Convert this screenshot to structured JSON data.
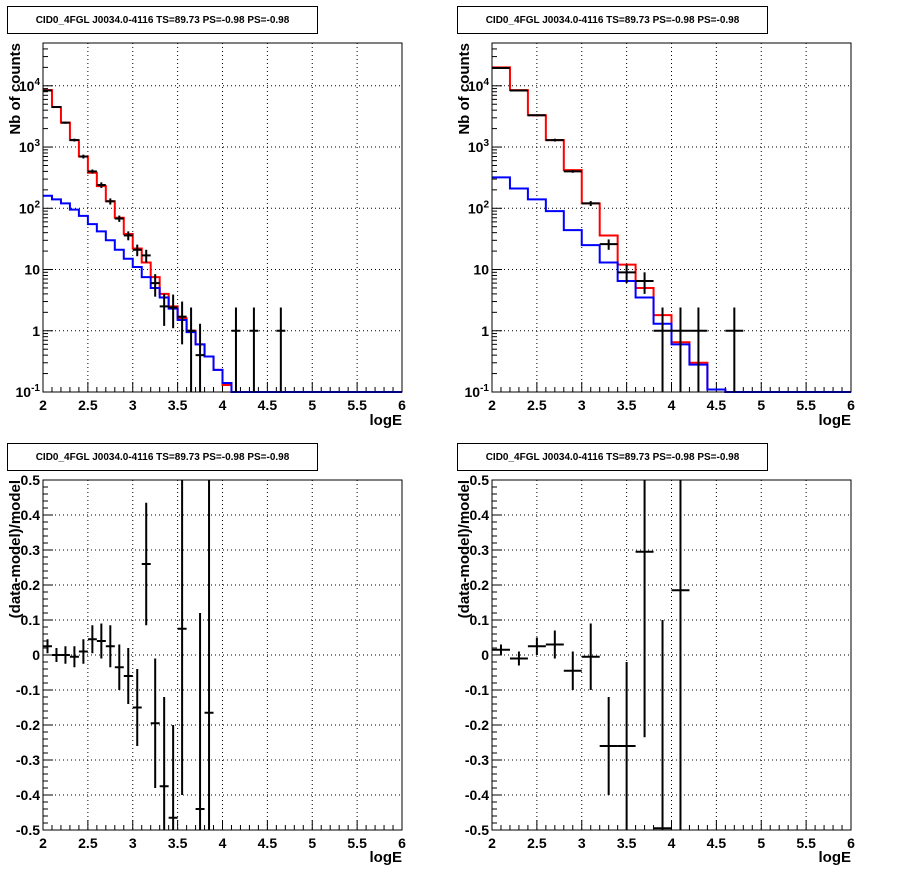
{
  "chart_data": [
    {
      "type": "line",
      "title": "CID0_4FGL J0034.0-4116 TS=89.73 PS=-0.98 PS=-0.98",
      "xlabel": "logE",
      "ylabel": "Nb of counts",
      "xlim": [
        2,
        6
      ],
      "ylim": [
        0.1,
        50000
      ],
      "yscale": "log",
      "grid": true,
      "x_ticks": [
        "2",
        "2.5",
        "3",
        "3.5",
        "4",
        "4.5",
        "5",
        "5.5",
        "6"
      ],
      "y_ticks": [
        "10^-1",
        "1",
        "10",
        "10^2",
        "10^3",
        "10^4"
      ],
      "bin_edges": [
        2.0,
        2.1,
        2.2,
        2.3,
        2.4,
        2.5,
        2.6,
        2.7,
        2.8,
        2.9,
        3.0,
        3.1,
        3.2,
        3.3,
        3.4,
        3.5,
        3.6,
        3.7,
        3.8,
        3.9,
        4.0,
        4.1,
        4.2,
        4.3,
        4.4,
        4.5,
        4.6,
        4.7,
        4.8,
        4.9,
        5.0,
        5.1,
        5.2,
        5.3,
        5.4,
        5.5,
        5.6,
        5.7,
        5.8,
        5.9,
        6.0
      ],
      "series": [
        {
          "color": "#ff0000",
          "values": [
            8500,
            4500,
            2500,
            1300,
            700,
            380,
            230,
            130,
            70,
            38,
            22,
            13,
            7.5,
            4,
            2.5,
            1.6,
            1.0,
            0.6,
            0.38,
            0.23,
            0.13,
            0.1,
            0.1,
            0.1,
            0.1,
            0.1,
            0.1,
            0.1,
            0.1,
            0.1,
            0.1,
            0.1,
            0.1,
            0.1,
            0.1,
            0.1,
            0.1,
            0.1,
            0.1,
            0.1
          ]
        },
        {
          "color": "#0000ff",
          "values": [
            160,
            140,
            120,
            95,
            75,
            55,
            42,
            30,
            21,
            15,
            11,
            7.5,
            5,
            3.5,
            2.3,
            1.5,
            0.95,
            0.6,
            0.38,
            0.23,
            0.14,
            0.1,
            0.1,
            0.1,
            0.1,
            0.1,
            0.1,
            0.1,
            0.1,
            0.1,
            0.1,
            0.1,
            0.1,
            0.1,
            0.1,
            0.1,
            0.1,
            0.1,
            0.1,
            0.1
          ]
        }
      ],
      "points": [
        {
          "x": 2.05,
          "y": 8400,
          "ylo": 8200,
          "yhi": 8600
        },
        {
          "x": 2.15,
          "y": 4500,
          "ylo": 4350,
          "yhi": 4650
        },
        {
          "x": 2.25,
          "y": 2500,
          "ylo": 2400,
          "yhi": 2600
        },
        {
          "x": 2.35,
          "y": 1300,
          "ylo": 1230,
          "yhi": 1370
        },
        {
          "x": 2.45,
          "y": 700,
          "ylo": 650,
          "yhi": 750
        },
        {
          "x": 2.55,
          "y": 400,
          "ylo": 370,
          "yhi": 430
        },
        {
          "x": 2.65,
          "y": 240,
          "ylo": 215,
          "yhi": 265
        },
        {
          "x": 2.75,
          "y": 130,
          "ylo": 115,
          "yhi": 145
        },
        {
          "x": 2.85,
          "y": 68,
          "ylo": 60,
          "yhi": 76
        },
        {
          "x": 2.95,
          "y": 36,
          "ylo": 30,
          "yhi": 42
        },
        {
          "x": 3.05,
          "y": 21,
          "ylo": 16.5,
          "yhi": 25.5
        },
        {
          "x": 3.15,
          "y": 17,
          "ylo": 13,
          "yhi": 21
        },
        {
          "x": 3.25,
          "y": 6,
          "ylo": 3.6,
          "yhi": 8.4
        },
        {
          "x": 3.35,
          "y": 2.5,
          "ylo": 1.2,
          "yhi": 4
        },
        {
          "x": 3.45,
          "y": 2.4,
          "ylo": 1.1,
          "yhi": 3.9
        },
        {
          "x": 3.55,
          "y": 1.7,
          "ylo": 0.6,
          "yhi": 3
        },
        {
          "x": 3.65,
          "y": 1.0,
          "ylo": 0.1,
          "yhi": 2.4
        },
        {
          "x": 3.75,
          "y": 0.4,
          "ylo": 0.1,
          "yhi": 1.3
        },
        {
          "x": 4.15,
          "y": 1.0,
          "ylo": 0.1,
          "yhi": 2.4
        },
        {
          "x": 4.35,
          "y": 1.0,
          "ylo": 0.1,
          "yhi": 2.4
        },
        {
          "x": 4.65,
          "y": 1.0,
          "ylo": 0.1,
          "yhi": 2.4
        }
      ]
    },
    {
      "type": "line",
      "title": "CID0_4FGL J0034.0-4116 TS=89.73 PS=-0.98 PS=-0.98",
      "xlabel": "logE",
      "ylabel": "Nb of counts",
      "xlim": [
        2,
        6
      ],
      "ylim": [
        0.1,
        50000
      ],
      "yscale": "log",
      "grid": true,
      "x_ticks": [
        "2",
        "2.5",
        "3",
        "3.5",
        "4",
        "4.5",
        "5",
        "5.5",
        "6"
      ],
      "y_ticks": [
        "10^-1",
        "1",
        "10",
        "10^2",
        "10^3",
        "10^4"
      ],
      "bin_edges": [
        2.0,
        2.2,
        2.4,
        2.6,
        2.8,
        3.0,
        3.2,
        3.4,
        3.6,
        3.8,
        4.0,
        4.2,
        4.4,
        4.6,
        4.8,
        5.0,
        5.2,
        5.4,
        5.6,
        5.8,
        6.0
      ],
      "series": [
        {
          "color": "#ff0000",
          "values": [
            20000,
            8500,
            3300,
            1300,
            420,
            120,
            36,
            12,
            5,
            1.8,
            0.65,
            0.3,
            0.11,
            0.1,
            0.1,
            0.1,
            0.1,
            0.1,
            0.1,
            0.1
          ]
        },
        {
          "color": "#0000ff",
          "values": [
            320,
            210,
            140,
            90,
            44,
            25,
            13,
            6.5,
            3.5,
            1.3,
            0.6,
            0.28,
            0.11,
            0.1,
            0.1,
            0.1,
            0.1,
            0.1,
            0.1,
            0.1
          ]
        }
      ],
      "points": [
        {
          "x": 2.1,
          "y": 19500,
          "ylo": 19200,
          "yhi": 19800
        },
        {
          "x": 2.3,
          "y": 8400,
          "ylo": 8200,
          "yhi": 8600
        },
        {
          "x": 2.5,
          "y": 3300,
          "ylo": 3180,
          "yhi": 3420
        },
        {
          "x": 2.7,
          "y": 1300,
          "ylo": 1230,
          "yhi": 1370
        },
        {
          "x": 2.9,
          "y": 400,
          "ylo": 380,
          "yhi": 420
        },
        {
          "x": 3.1,
          "y": 120,
          "ylo": 109,
          "yhi": 131
        },
        {
          "x": 3.3,
          "y": 26,
          "ylo": 21,
          "yhi": 31
        },
        {
          "x": 3.5,
          "y": 9,
          "ylo": 6,
          "yhi": 12
        },
        {
          "x": 3.7,
          "y": 6.5,
          "ylo": 4,
          "yhi": 9
        },
        {
          "x": 3.9,
          "y": 1.0,
          "ylo": 0.1,
          "yhi": 2.4
        },
        {
          "x": 4.1,
          "y": 1.0,
          "ylo": 0.1,
          "yhi": 2.4
        },
        {
          "x": 4.3,
          "y": 1.0,
          "ylo": 0.1,
          "yhi": 2.4
        },
        {
          "x": 4.7,
          "y": 1.0,
          "ylo": 0.1,
          "yhi": 2.4
        }
      ]
    },
    {
      "type": "scatter",
      "title": "CID0_4FGL J0034.0-4116 TS=89.73 PS=-0.98 PS=-0.98",
      "xlabel": "logE",
      "ylabel": "(data-model)/model",
      "xlim": [
        2,
        6
      ],
      "ylim": [
        -0.5,
        0.5
      ],
      "grid": true,
      "x_ticks": [
        "2",
        "2.5",
        "3",
        "3.5",
        "4",
        "4.5",
        "5",
        "5.5",
        "6"
      ],
      "y_ticks": [
        "-0.5",
        "-0.4",
        "-0.3",
        "-0.2",
        "-0.1",
        "0",
        "0.1",
        "0.2",
        "0.3",
        "0.4",
        "0.5"
      ],
      "xerr": 0.05,
      "points": [
        {
          "x": 2.05,
          "y": 0.025,
          "ylo": 0.005,
          "yhi": 0.045
        },
        {
          "x": 2.15,
          "y": 0.0,
          "ylo": -0.02,
          "yhi": 0.02
        },
        {
          "x": 2.25,
          "y": 0.0,
          "ylo": -0.025,
          "yhi": 0.025
        },
        {
          "x": 2.35,
          "y": -0.005,
          "ylo": -0.035,
          "yhi": 0.025
        },
        {
          "x": 2.45,
          "y": 0.01,
          "ylo": -0.025,
          "yhi": 0.045
        },
        {
          "x": 2.55,
          "y": 0.045,
          "ylo": 0.005,
          "yhi": 0.085
        },
        {
          "x": 2.65,
          "y": 0.04,
          "ylo": -0.01,
          "yhi": 0.09
        },
        {
          "x": 2.75,
          "y": 0.025,
          "ylo": -0.035,
          "yhi": 0.085
        },
        {
          "x": 2.85,
          "y": -0.035,
          "ylo": -0.1,
          "yhi": 0.03
        },
        {
          "x": 2.95,
          "y": -0.06,
          "ylo": -0.14,
          "yhi": 0.02
        },
        {
          "x": 3.05,
          "y": -0.15,
          "ylo": -0.26,
          "yhi": -0.04
        },
        {
          "x": 3.15,
          "y": 0.26,
          "ylo": 0.085,
          "yhi": 0.435
        },
        {
          "x": 3.25,
          "y": -0.195,
          "ylo": -0.38,
          "yhi": -0.01
        },
        {
          "x": 3.35,
          "y": -0.375,
          "ylo": -0.5,
          "yhi": -0.12
        },
        {
          "x": 3.45,
          "y": -0.465,
          "ylo": -0.5,
          "yhi": -0.2
        },
        {
          "x": 3.55,
          "y": 0.075,
          "ylo": -0.4,
          "yhi": 0.5
        },
        {
          "x": 3.75,
          "y": -0.44,
          "ylo": -0.5,
          "yhi": 0.12
        },
        {
          "x": 3.85,
          "y": -0.165,
          "ylo": -0.5,
          "yhi": 0.5
        }
      ]
    },
    {
      "type": "scatter",
      "title": "CID0_4FGL J0034.0-4116 TS=89.73 PS=-0.98 PS=-0.98",
      "xlabel": "logE",
      "ylabel": "(data-model)/model",
      "xlim": [
        2,
        6
      ],
      "ylim": [
        -0.5,
        0.5
      ],
      "grid": true,
      "x_ticks": [
        "2",
        "2.5",
        "3",
        "3.5",
        "4",
        "4.5",
        "5",
        "5.5",
        "6"
      ],
      "y_ticks": [
        "-0.5",
        "-0.4",
        "-0.3",
        "-0.2",
        "-0.1",
        "0",
        "0.1",
        "0.2",
        "0.3",
        "0.4",
        "0.5"
      ],
      "xerr": 0.1,
      "points": [
        {
          "x": 2.1,
          "y": 0.015,
          "ylo": 0.0,
          "yhi": 0.03
        },
        {
          "x": 2.3,
          "y": -0.01,
          "ylo": -0.03,
          "yhi": 0.01
        },
        {
          "x": 2.5,
          "y": 0.025,
          "ylo": 0.0,
          "yhi": 0.05
        },
        {
          "x": 2.7,
          "y": 0.03,
          "ylo": -0.01,
          "yhi": 0.07
        },
        {
          "x": 2.9,
          "y": -0.045,
          "ylo": -0.1,
          "yhi": 0.01
        },
        {
          "x": 3.1,
          "y": -0.005,
          "ylo": -0.1,
          "yhi": 0.09
        },
        {
          "x": 3.3,
          "y": -0.26,
          "ylo": -0.4,
          "yhi": -0.12
        },
        {
          "x": 3.5,
          "y": -0.26,
          "ylo": -0.5,
          "yhi": -0.02
        },
        {
          "x": 3.7,
          "y": 0.295,
          "ylo": -0.235,
          "yhi": 0.5
        },
        {
          "x": 3.9,
          "y": -0.495,
          "ylo": -0.5,
          "yhi": 0.1
        },
        {
          "x": 4.1,
          "y": 0.185,
          "ylo": -0.5,
          "yhi": 0.5
        }
      ]
    }
  ]
}
